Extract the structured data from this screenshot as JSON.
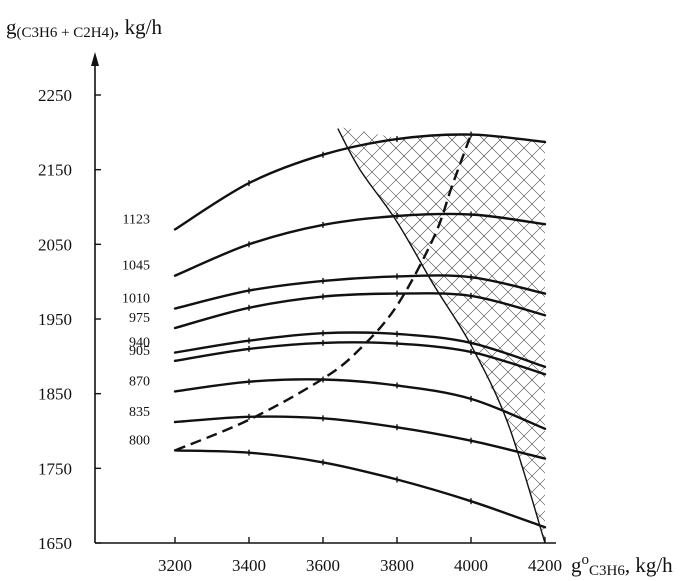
{
  "chart_data": {
    "type": "line",
    "y_axis_title": {
      "prefix": "g",
      "subscript": "(C3H6 + C2H4)",
      "suffix": ", kg/h"
    },
    "x_axis_title": {
      "prefix": "g",
      "superscript": "o",
      "subscript": "C3H6",
      "suffix": ", kg/h"
    },
    "xlim": [
      3200,
      4200
    ],
    "ylim": [
      1650,
      2250
    ],
    "x_ticks": [
      3200,
      3400,
      3600,
      3800,
      4000,
      4200
    ],
    "y_ticks": [
      1650,
      1750,
      1850,
      1950,
      2050,
      2150,
      2250
    ],
    "grid": false,
    "series": [
      {
        "name": "800",
        "x": [
          3200,
          3400,
          3600,
          3800,
          4000,
          4200
        ],
        "y": [
          1774,
          1771,
          1758,
          1735,
          1706,
          1671
        ]
      },
      {
        "name": "835",
        "x": [
          3200,
          3400,
          3600,
          3800,
          4000,
          4200
        ],
        "y": [
          1812,
          1819,
          1817,
          1805,
          1787,
          1763
        ]
      },
      {
        "name": "870",
        "x": [
          3200,
          3400,
          3600,
          3800,
          4000,
          4200
        ],
        "y": [
          1853,
          1866,
          1869,
          1861,
          1843,
          1803
        ]
      },
      {
        "name": "905",
        "x": [
          3200,
          3400,
          3600,
          3800,
          4000,
          4200
        ],
        "y": [
          1894,
          1910,
          1918,
          1917,
          1906,
          1876
        ]
      },
      {
        "name": "940",
        "x": [
          3200,
          3400,
          3600,
          3800,
          4000,
          4200
        ],
        "y": [
          1905,
          1921,
          1931,
          1930,
          1918,
          1886
        ]
      },
      {
        "name": "975",
        "x": [
          3200,
          3400,
          3600,
          3800,
          4000,
          4200
        ],
        "y": [
          1938,
          1965,
          1980,
          1984,
          1981,
          1955
        ]
      },
      {
        "name": "1010",
        "x": [
          3200,
          3400,
          3600,
          3800,
          4000,
          4200
        ],
        "y": [
          1964,
          1988,
          2001,
          2007,
          2006,
          1984
        ]
      },
      {
        "name": "1045",
        "x": [
          3200,
          3400,
          3600,
          3800,
          4000,
          4200
        ],
        "y": [
          2008,
          2050,
          2076,
          2088,
          2090,
          2077
        ]
      },
      {
        "name": "1123",
        "x": [
          3200,
          3400,
          3600,
          3800,
          4000,
          4200
        ],
        "y": [
          2070,
          2132,
          2170,
          2191,
          2197,
          2187
        ]
      }
    ],
    "optimum_line": {
      "style": "dashed",
      "x": [
        3200,
        3400,
        3600,
        3700,
        3800,
        3900,
        3950,
        4000
      ],
      "y": [
        1774,
        1815,
        1870,
        1910,
        1968,
        2060,
        2130,
        2197
      ]
    },
    "constraint_line": {
      "style": "solid",
      "x": [
        3640,
        3700,
        3800,
        3900,
        4000,
        4100,
        4200
      ],
      "y": [
        2205,
        2150,
        2080,
        1995,
        1915,
        1810,
        1650
      ]
    },
    "hatched_region": "between constraint line, upper curve and x = 4200"
  }
}
